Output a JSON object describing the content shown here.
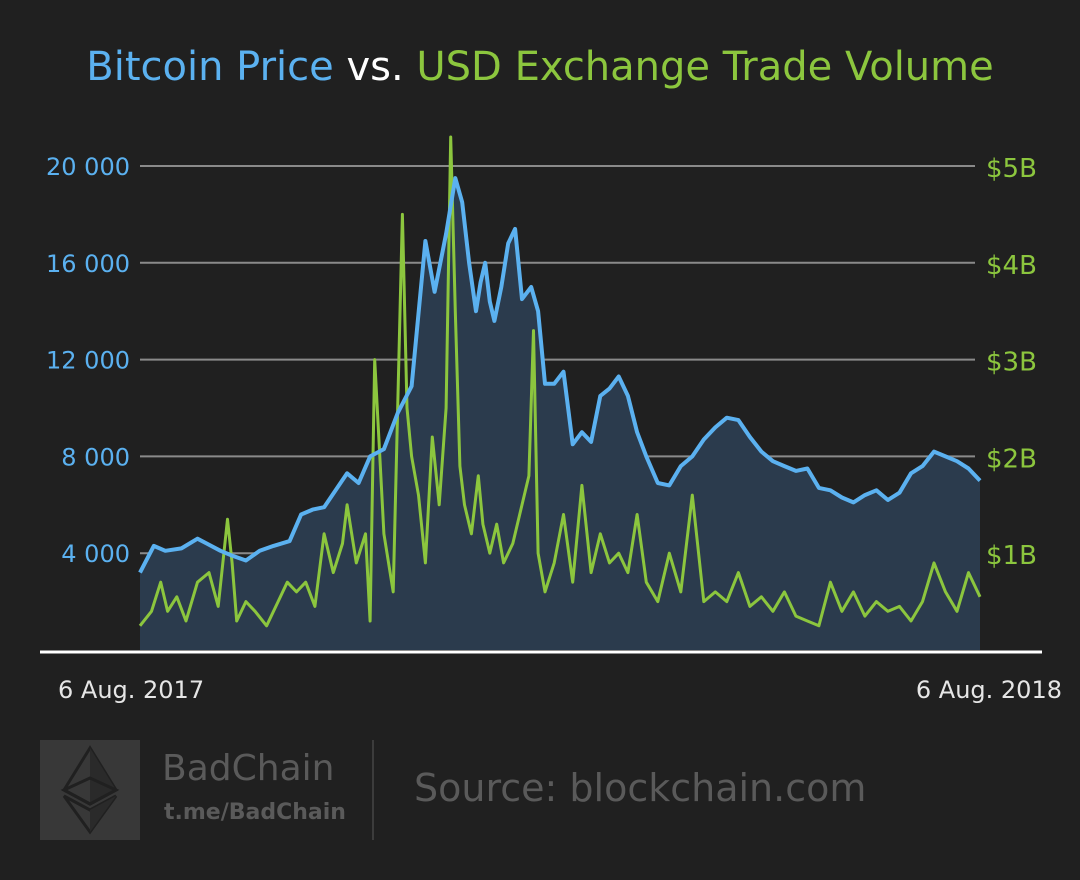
{
  "title": {
    "part1": "Bitcoin Price",
    "part2": " vs. ",
    "part3": "USD Exchange Trade Volume"
  },
  "colors": {
    "price": "#5bb1f0",
    "volume": "#8cc63e",
    "area_fill": "#2b3b4d",
    "background": "#202020",
    "grid": "#8a8a8a"
  },
  "chart_data": {
    "type": "line",
    "title": "Bitcoin Price vs. USD Exchange Trade Volume",
    "x_range": [
      "6 Aug. 2017",
      "6 Aug. 2018"
    ],
    "x_tick_labels": [
      "6 Aug. 2017",
      "6 Aug. 2018"
    ],
    "y_left": {
      "ticks": [
        "4 000",
        "8 000",
        "12 000",
        "16 000",
        "20 000"
      ],
      "tick_values": [
        4000,
        8000,
        12000,
        16000,
        20000
      ],
      "range": [
        0,
        20000
      ]
    },
    "y_right": {
      "ticks": [
        "$1B",
        "$2B",
        "$3B",
        "$4B",
        "$5B"
      ],
      "tick_values": [
        1,
        2,
        3,
        4,
        5
      ],
      "unit": "billion USD",
      "range": [
        0,
        5
      ]
    },
    "grid": true,
    "series": [
      {
        "name": "Bitcoin Price",
        "axis": "left",
        "style": "area+line",
        "x": [
          0,
          6,
          11,
          18,
          25,
          29,
          35,
          40,
          46,
          52,
          58,
          65,
          70,
          75,
          80,
          85,
          90,
          95,
          100,
          106,
          112,
          118,
          124,
          128,
          133,
          137,
          140,
          143,
          146,
          148,
          150,
          152,
          154,
          157,
          160,
          163,
          166,
          170,
          173,
          176,
          180,
          184,
          188,
          192,
          196,
          200,
          204,
          208,
          212,
          216,
          220,
          225,
          230,
          235,
          240,
          245,
          250,
          255,
          260,
          265,
          270,
          275,
          280,
          285,
          290,
          295,
          300,
          305,
          310,
          315,
          320,
          325,
          330,
          335,
          340,
          345,
          350,
          355,
          360,
          365
        ],
        "values": [
          3200,
          4300,
          4100,
          4200,
          4600,
          4400,
          4100,
          3900,
          3700,
          4100,
          4300,
          4500,
          5600,
          5800,
          5900,
          6600,
          7300,
          6900,
          8000,
          8300,
          9800,
          10900,
          16900,
          14800,
          17200,
          19500,
          18500,
          16000,
          14000,
          15200,
          16000,
          14400,
          13600,
          15000,
          16800,
          17400,
          14500,
          15000,
          14000,
          11000,
          11000,
          11500,
          8500,
          9000,
          8600,
          10500,
          10800,
          11300,
          10500,
          9000,
          8000,
          6900,
          6800,
          7600,
          8000,
          8700,
          9200,
          9600,
          9500,
          8800,
          8200,
          7800,
          7600,
          7400,
          7500,
          6700,
          6600,
          6300,
          6100,
          6400,
          6600,
          6200,
          6500,
          7300,
          7600,
          8200,
          8000,
          7800,
          7500,
          7000
        ]
      },
      {
        "name": "USD Exchange Trade Volume",
        "axis": "right",
        "style": "line",
        "x": [
          0,
          5,
          9,
          12,
          16,
          20,
          25,
          30,
          34,
          38,
          40,
          42,
          46,
          50,
          55,
          60,
          64,
          68,
          72,
          76,
          80,
          84,
          88,
          90,
          94,
          98,
          100,
          102,
          106,
          110,
          114,
          116,
          118,
          121,
          124,
          127,
          130,
          133,
          135,
          137,
          139,
          141,
          144,
          147,
          149,
          152,
          155,
          158,
          162,
          166,
          169,
          171,
          173,
          176,
          180,
          184,
          188,
          192,
          196,
          200,
          204,
          208,
          212,
          216,
          220,
          225,
          230,
          235,
          240,
          245,
          250,
          255,
          260,
          265,
          270,
          275,
          280,
          285,
          290,
          295,
          300,
          305,
          310,
          315,
          320,
          325,
          330,
          335,
          340,
          345,
          350,
          355,
          360,
          365
        ],
        "values": [
          0.25,
          0.4,
          0.7,
          0.4,
          0.55,
          0.3,
          0.7,
          0.8,
          0.45,
          1.35,
          0.9,
          0.3,
          0.5,
          0.4,
          0.25,
          0.5,
          0.7,
          0.6,
          0.7,
          0.45,
          1.2,
          0.8,
          1.1,
          1.5,
          0.9,
          1.2,
          0.3,
          3.0,
          1.2,
          0.6,
          4.5,
          2.5,
          2.0,
          1.6,
          0.9,
          2.2,
          1.5,
          2.5,
          5.3,
          3.5,
          1.9,
          1.5,
          1.2,
          1.8,
          1.3,
          1.0,
          1.3,
          0.9,
          1.1,
          1.5,
          1.8,
          3.3,
          1.0,
          0.6,
          0.9,
          1.4,
          0.7,
          1.7,
          0.8,
          1.2,
          0.9,
          1.0,
          0.8,
          1.4,
          0.7,
          0.5,
          1.0,
          0.6,
          1.6,
          0.5,
          0.6,
          0.5,
          0.8,
          0.45,
          0.55,
          0.4,
          0.6,
          0.35,
          0.3,
          0.25,
          0.7,
          0.4,
          0.6,
          0.35,
          0.5,
          0.4,
          0.45,
          0.3,
          0.5,
          0.9,
          0.6,
          0.4,
          0.8,
          0.55
        ]
      }
    ]
  },
  "footer": {
    "brand": "BadChain",
    "link": "t.me/BadChain",
    "source": "Source: blockchain.com",
    "logo_icon": "ethereum-logo-icon"
  }
}
